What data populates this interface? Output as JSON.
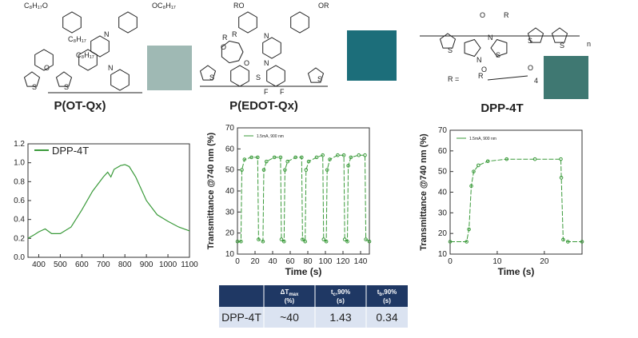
{
  "structures": [
    {
      "name": "P(OT-Qx)",
      "labels": [
        "C₈H₁₇O",
        "OC₈H₁₇",
        "C₈H₁₇",
        "C₈H₁₇",
        "O",
        "S",
        "S",
        "N",
        "N"
      ]
    },
    {
      "name": "P(EDOT-Qx)",
      "labels": [
        "RO",
        "OR",
        "R",
        "R",
        "O",
        "O",
        "S",
        "S",
        "S",
        "N",
        "N",
        "F",
        "F"
      ]
    },
    {
      "name": "DPP-4T",
      "labels": [
        "O",
        "N",
        "R",
        "N",
        "R",
        "O",
        "S",
        "S",
        "S",
        "S",
        "n",
        "R =",
        "O",
        "4"
      ]
    }
  ],
  "chart_data": [
    {
      "type": "line",
      "legend": "upper left",
      "xlim": [
        350,
        1100
      ],
      "ylim": [
        0,
        1.2
      ],
      "xticks": [
        400,
        500,
        600,
        700,
        800,
        900,
        1000,
        1100
      ],
      "yticks": [
        {
          "value": 0,
          "label": "0.0"
        },
        0.2,
        0.4,
        0.6,
        0.8,
        {
          "value": 1,
          "label": "1.0"
        },
        1.2
      ],
      "series": [
        {
          "name": "DPP-4T",
          "color": "#3a9a3a",
          "x": [
            350,
            380,
            400,
            430,
            460,
            500,
            550,
            600,
            650,
            700,
            720,
            735,
            750,
            780,
            800,
            820,
            850,
            900,
            950,
            1000,
            1050,
            1100
          ],
          "values": [
            0.2,
            0.24,
            0.27,
            0.3,
            0.25,
            0.25,
            0.32,
            0.5,
            0.7,
            0.85,
            0.9,
            0.85,
            0.93,
            0.97,
            0.98,
            0.96,
            0.85,
            0.6,
            0.45,
            0.38,
            0.32,
            0.28
          ]
        }
      ]
    },
    {
      "type": "line",
      "markers": true,
      "title": "",
      "xlabel": "Time (s)",
      "ylabel": "Transmittance @740 nm (%)",
      "xlim": [
        0,
        150
      ],
      "ylim": [
        10,
        70
      ],
      "xticks": [
        0,
        20,
        40,
        60,
        80,
        100,
        120,
        140
      ],
      "yticks": [
        10,
        20,
        30,
        40,
        50,
        60,
        70
      ],
      "series": [
        {
          "name": "1.5mA, 900 nm",
          "color": "#3a9a3a",
          "x": [
            0,
            4,
            5,
            8,
            16,
            23,
            24,
            29,
            30,
            33,
            42,
            49,
            50,
            53,
            54,
            57,
            66,
            73,
            74,
            77,
            78,
            81,
            90,
            97,
            98,
            101,
            102,
            105,
            114,
            121,
            122,
            125,
            126,
            129,
            138,
            145,
            146,
            150
          ],
          "values": [
            16,
            16,
            50,
            55,
            56,
            56,
            17,
            16,
            50,
            54,
            56,
            56,
            17,
            16,
            50,
            54,
            56,
            56,
            17,
            16,
            50,
            54,
            56,
            57,
            17,
            16,
            50,
            55,
            57,
            57,
            17,
            16,
            52,
            56,
            57,
            57,
            17,
            16
          ]
        }
      ]
    },
    {
      "type": "line",
      "markers": true,
      "xlabel": "Time (s)",
      "ylabel": "Transmittance @740 nm (%)",
      "xlim": [
        0,
        28
      ],
      "ylim": [
        10,
        70
      ],
      "xticks": [
        0,
        10,
        20
      ],
      "yticks": [
        10,
        20,
        30,
        40,
        50,
        60,
        70
      ],
      "series": [
        {
          "name": "1.5mA, 900 nm",
          "color": "#3a9a3a",
          "x": [
            0,
            3.5,
            4,
            4.5,
            5,
            6,
            8,
            12,
            18,
            23.5,
            23.6,
            24,
            25,
            28
          ],
          "values": [
            16,
            16,
            22,
            43,
            50,
            53,
            55,
            56,
            56,
            56,
            47,
            17,
            16,
            16
          ]
        }
      ]
    }
  ],
  "table": {
    "header": [
      {
        "main": "ΔT",
        "sub": "max",
        "unit": "(%)"
      },
      {
        "main": "t",
        "sub": "c",
        "rest": ",90%",
        "unit": "(s)"
      },
      {
        "main": "t",
        "sub": "b",
        "rest": ",90%",
        "unit": "(s)"
      }
    ],
    "rows": [
      [
        "DPP-4T",
        "~40",
        "1.43",
        "0.34"
      ]
    ]
  }
}
